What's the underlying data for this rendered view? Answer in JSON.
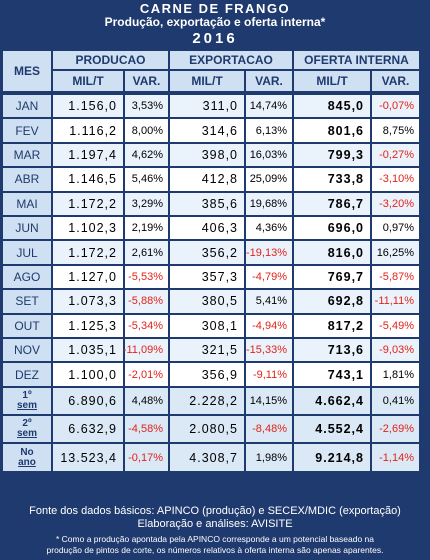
{
  "header": {
    "title": "CARNE DE FRANGO",
    "subtitle": "Produção, exportação e oferta interna*",
    "year": "2016"
  },
  "columns": {
    "mes": "MES",
    "groups": [
      "PRODUCAO",
      "EXPORTACAO",
      "OFERTA INTERNA"
    ],
    "unit": "MIL/T",
    "var": "VAR."
  },
  "months": [
    {
      "mes": "JAN",
      "prod": "1.156,0",
      "prod_var": "3,53%",
      "exp": "311,0",
      "exp_var": "14,74%",
      "of": "845,0",
      "of_var": "-0,07%"
    },
    {
      "mes": "FEV",
      "prod": "1.116,2",
      "prod_var": "8,00%",
      "exp": "314,6",
      "exp_var": "6,13%",
      "of": "801,6",
      "of_var": "8,75%"
    },
    {
      "mes": "MAR",
      "prod": "1.197,4",
      "prod_var": "4,62%",
      "exp": "398,0",
      "exp_var": "16,03%",
      "of": "799,3",
      "of_var": "-0,27%"
    },
    {
      "mes": "ABR",
      "prod": "1.146,5",
      "prod_var": "5,46%",
      "exp": "412,8",
      "exp_var": "25,09%",
      "of": "733,8",
      "of_var": "-3,10%"
    },
    {
      "mes": "MAI",
      "prod": "1.172,2",
      "prod_var": "3,29%",
      "exp": "385,6",
      "exp_var": "19,68%",
      "of": "786,7",
      "of_var": "-3,20%"
    },
    {
      "mes": "JUN",
      "prod": "1.102,3",
      "prod_var": "2,19%",
      "exp": "406,3",
      "exp_var": "4,36%",
      "of": "696,0",
      "of_var": "0,97%"
    },
    {
      "mes": "JUL",
      "prod": "1.172,2",
      "prod_var": "2,61%",
      "exp": "356,2",
      "exp_var": "-19,13%",
      "of": "816,0",
      "of_var": "16,25%"
    },
    {
      "mes": "AGO",
      "prod": "1.127,0",
      "prod_var": "-5,53%",
      "exp": "357,3",
      "exp_var": "-4,79%",
      "of": "769,7",
      "of_var": "-5,87%"
    },
    {
      "mes": "SET",
      "prod": "1.073,3",
      "prod_var": "-5,88%",
      "exp": "380,5",
      "exp_var": "5,41%",
      "of": "692,8",
      "of_var": "-11,11%"
    },
    {
      "mes": "OUT",
      "prod": "1.125,3",
      "prod_var": "-5,34%",
      "exp": "308,1",
      "exp_var": "-4,94%",
      "of": "817,2",
      "of_var": "-5,49%"
    },
    {
      "mes": "NOV",
      "prod": "1.035,1",
      "prod_var": "-11,09%",
      "exp": "321,5",
      "exp_var": "-15,33%",
      "of": "713,6",
      "of_var": "-9,03%"
    },
    {
      "mes": "DEZ",
      "prod": "1.100,0",
      "prod_var": "-2,01%",
      "exp": "356,9",
      "exp_var": "-9,11%",
      "of": "743,1",
      "of_var": "1,81%"
    }
  ],
  "summary": [
    {
      "l1": "1º",
      "l2": "sem",
      "prod": "6.890,6",
      "prod_var": "4,48%",
      "exp": "2.228,2",
      "exp_var": "14,15%",
      "of": "4.662,4",
      "of_var": "0,41%"
    },
    {
      "l1": "2º",
      "l2": "sem",
      "prod": "6.632,9",
      "prod_var": "-4,58%",
      "exp": "2.080,5",
      "exp_var": "-8,48%",
      "of": "4.552,4",
      "of_var": "-2,69%"
    },
    {
      "l1": "No",
      "l2": "ano",
      "prod": "13.523,4",
      "prod_var": "-0,17%",
      "exp": "4.308,7",
      "exp_var": "1,98%",
      "of": "9.214,8",
      "of_var": "-1,14%"
    }
  ],
  "footer": {
    "source": "Fonte dos dados básicos: APINCO (produção) e SECEX/MDIC (exportação)",
    "credits": "Elaboração e análises: AVISITE",
    "note_line1": "* Como a produção apontada pela APINCO corresponde a um potencial baseado na",
    "note_line2": "produção de pintos de corte, os números relativos à oferta interna são apenas aparentes."
  },
  "colors": {
    "frame": "#1f3a6e",
    "header_cell": "#cfe0f2",
    "negative": "#e2231a"
  }
}
